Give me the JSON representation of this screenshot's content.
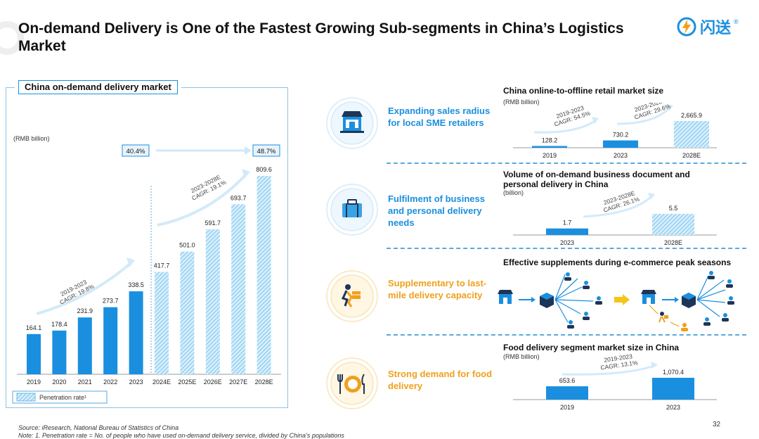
{
  "header": {
    "title": "On-demand Delivery is One of the Fastest Growing Sub-segments in China’s Logistics Market",
    "logo_text": "闪送",
    "logo_reg": "®"
  },
  "left_panel": {
    "title": "China on-demand delivery market",
    "unit": "(RMB billion)",
    "legend": "Penetration rate¹",
    "penetration": [
      "40.4%",
      "48.7%"
    ],
    "cagr_1": [
      "2019-2023",
      "CAGR: 19.8%"
    ],
    "cagr_2": [
      "2023-2028E",
      "CAGR: 19.1%"
    ]
  },
  "rows": [
    {
      "text": "Expanding sales radius for local SME retailers",
      "icon": "storefront-icon"
    },
    {
      "text": "Fulfilment of business and personal delivery needs",
      "icon": "briefcase-icon"
    },
    {
      "text": "Supplementary to last-mile delivery capacity",
      "icon": "courier-icon"
    },
    {
      "text": "Strong demand for food delivery",
      "icon": "food-plate-icon"
    }
  ],
  "mini_charts": {
    "o2o": {
      "title": "China online-to-offline retail market size",
      "unit": "(RMB billion)",
      "cagr_1": [
        "2019-2023",
        "CAGR: 54.5%"
      ],
      "cagr_2": [
        "2023-2028E",
        "CAGR: 29.6%"
      ]
    },
    "doc": {
      "title": "Volume of on-demand business document and personal delivery in China",
      "unit": "(billion)",
      "cagr_1": [
        "2023-2028E",
        "CAGR: 26.1%"
      ]
    },
    "peak": {
      "title": "Effective supplements during e-commerce peak seasons"
    },
    "food": {
      "title": "Food delivery segment market size in China",
      "unit": "(RMB billion)",
      "cagr_1": [
        "2019-2023",
        "CAGR: 13.1%"
      ]
    }
  },
  "footer": {
    "source": "Source: iResearch, National Bureau of Statistics of China",
    "note": "Note: 1. Penetration rate = No. of people who have used on-demand delivery service, divided by China’s populations",
    "page_number": "32"
  },
  "colors": {
    "accent_blue": "#1a8fe0",
    "hatch_blue": "#8ccdf0",
    "orange": "#f0a01c",
    "dark_navy": "#1e3557"
  },
  "chart_data": [
    {
      "type": "bar",
      "title": "China on-demand delivery market",
      "ylabel": "(RMB billion)",
      "categories": [
        "2019",
        "2020",
        "2021",
        "2022",
        "2023",
        "2024E",
        "2025E",
        "2026E",
        "2027E",
        "2028E"
      ],
      "values": [
        164.1,
        178.4,
        231.9,
        273.7,
        338.5,
        417.7,
        501.0,
        591.7,
        693.7,
        809.6
      ],
      "labels": [
        "164.1",
        "178.4",
        "231.9",
        "273.7",
        "338.5",
        "417.7",
        "501.0",
        "591.7",
        "693.7",
        "809.6"
      ],
      "forecast_from_index": 5,
      "ylim": [
        0,
        900
      ]
    },
    {
      "type": "bar",
      "title": "China online-to-offline retail market size",
      "ylabel": "(RMB billion)",
      "categories": [
        "2019",
        "2023",
        "2028E"
      ],
      "values": [
        128.2,
        730.2,
        2665.9
      ],
      "labels": [
        "128.2",
        "730.2",
        "2,665.9"
      ]
    },
    {
      "type": "bar",
      "title": "Volume of on-demand business document and personal delivery in China",
      "ylabel": "(billion)",
      "categories": [
        "2023",
        "2028E"
      ],
      "values": [
        1.7,
        5.5
      ],
      "labels": [
        "1.7",
        "5.5"
      ]
    },
    {
      "type": "bar",
      "title": "Food delivery segment market size in China",
      "ylabel": "(RMB billion)",
      "categories": [
        "2019",
        "2023"
      ],
      "values": [
        653.6,
        1070.4
      ],
      "labels": [
        "653.6",
        "1,070.4"
      ]
    }
  ]
}
